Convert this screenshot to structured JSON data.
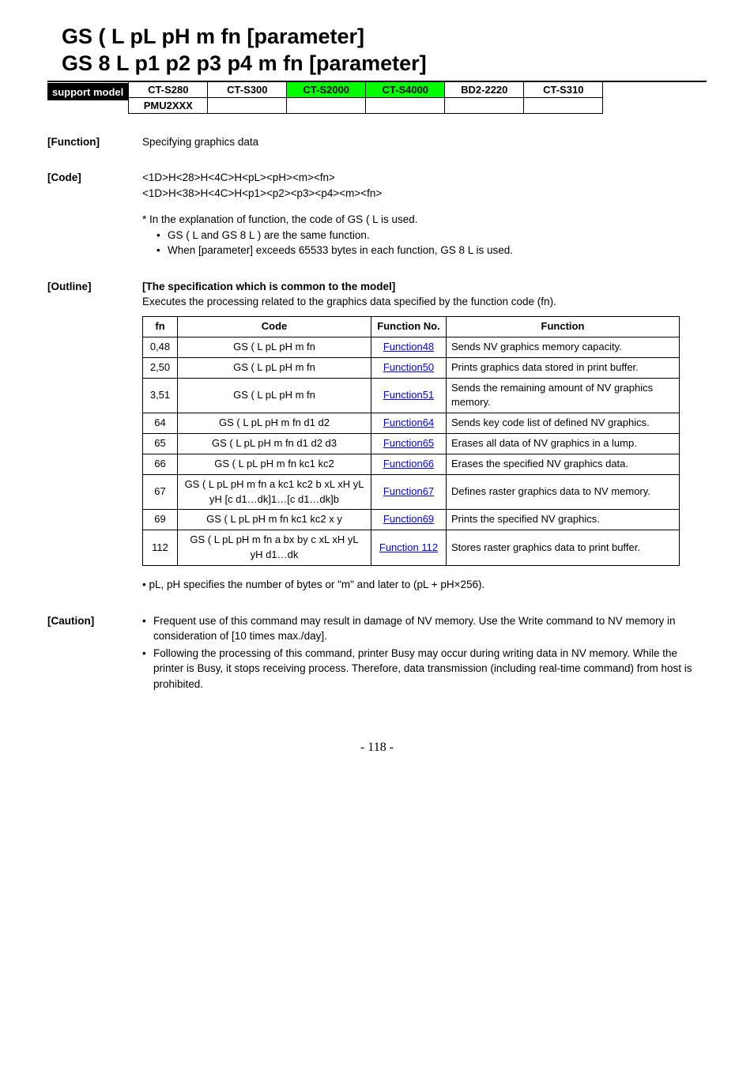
{
  "title": {
    "line1": "GS ( L pL pH m fn [parameter]",
    "line2": "GS 8 L p1 p2 p3 p4 m fn [parameter]"
  },
  "support": {
    "label": "support model",
    "cells": [
      [
        "CT-S280",
        "CT-S300",
        "CT-S2000",
        "CT-S4000",
        "BD2-2220",
        "CT-S310"
      ],
      [
        "PMU2XXX",
        "",
        "",
        "",
        "",
        ""
      ]
    ],
    "green_cols_row0": [
      2,
      3
    ]
  },
  "function_section": {
    "label": "[Function]",
    "text": "Specifying graphics data"
  },
  "code_section": {
    "label": "[Code]",
    "line1": "<1D>H<28>H<4C>H<pL><pH><m><fn>",
    "line2": "<1D>H<38>H<4C>H<p1><p2><p3><p4><m><fn>",
    "note1": "* In the explanation of function, the code of GS ( L is used.",
    "bullet1": "GS ( L and GS 8 L ) are the same function.",
    "bullet2": "When [parameter] exceeds 65533 bytes in each function, GS 8 L is used."
  },
  "outline_section": {
    "label": "[Outline]",
    "title": "[The specification which is common to the model]",
    "desc": "Executes the processing related to the graphics data specified by the function code (fn)."
  },
  "fn_table": {
    "headers": {
      "fn": "fn",
      "code": "Code",
      "fno": "Function No.",
      "func": "Function"
    },
    "rows": [
      {
        "fn": "0,48",
        "code": "GS ( L pL pH m fn",
        "fno": "Function48",
        "func": "Sends NV graphics memory capacity."
      },
      {
        "fn": "2,50",
        "code": "GS ( L pL pH m fn",
        "fno": "Function50",
        "func": "Prints graphics data stored in print buffer."
      },
      {
        "fn": "3,51",
        "code": "GS ( L pL pH m fn",
        "fno": "Function51",
        "func": "Sends the remaining amount of NV graphics memory."
      },
      {
        "fn": "64",
        "code": "GS ( L pL pH m fn d1 d2",
        "fno": "Function64",
        "func": "Sends key code list of defined NV graphics."
      },
      {
        "fn": "65",
        "code": "GS ( L pL pH m fn d1 d2 d3",
        "fno": "Function65",
        "func": "Erases all data of NV graphics in a lump."
      },
      {
        "fn": "66",
        "code": "GS ( L pL pH m fn kc1 kc2",
        "fno": "Function66",
        "func": "Erases the specified NV graphics data."
      },
      {
        "fn": "67",
        "code": "GS ( L pL pH m fn a kc1 kc2 b xL xH yL yH [c d1…dk]1…[c d1…dk]b",
        "fno": "Function67",
        "func": "Defines raster graphics data to NV memory."
      },
      {
        "fn": "69",
        "code": "GS ( L pL pH m fn kc1 kc2 x y",
        "fno": "Function69",
        "func": "Prints the specified NV graphics."
      },
      {
        "fn": "112",
        "code": "GS ( L pL pH m fn a bx by c xL xH yL yH d1…dk",
        "fno": "Function 112",
        "func": "Stores raster graphics data to print buffer."
      }
    ]
  },
  "after_table_note": "• pL, pH specifies the number of bytes or \"m\" and later to (pL + pH×256).",
  "caution_section": {
    "label": "[Caution]",
    "bullets": [
      "Frequent use of this command may result in damage of NV memory. Use the Write command to NV memory in consideration of [10 times max./day].",
      "Following the processing of this command, printer Busy may occur during writing data in NV memory. While the printer is Busy, it stops receiving process. Therefore, data transmission (including real-time command) from host is prohibited."
    ]
  },
  "page_number": "- 118 -"
}
